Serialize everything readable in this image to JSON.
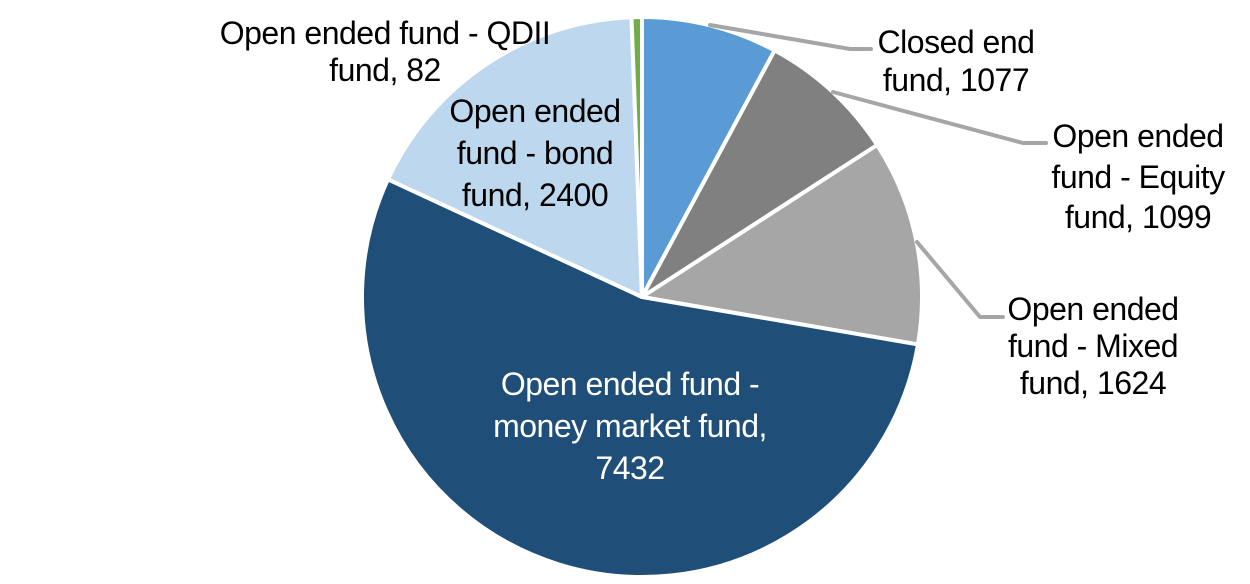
{
  "chart_data": {
    "type": "pie",
    "title": "",
    "total": 13714,
    "start_angle_deg": 0,
    "direction": "clockwise",
    "background_color": "#FFFFFF",
    "slice_border_color": "#FFFFFF",
    "leader_line_color": "#A6A6A6",
    "legend_position": "none",
    "slices": [
      {
        "id": "closed",
        "label": "Closed end fund",
        "value": 1077,
        "color": "#5B9BD5",
        "label_lines": [
          "Closed end",
          "fund, 1077"
        ],
        "label_color": "#000000",
        "has_leader_line": true
      },
      {
        "id": "equity",
        "label": "Open ended fund - Equity fund",
        "value": 1099,
        "color": "#808080",
        "label_lines": [
          "Open ended",
          "fund - Equity",
          "fund, 1099"
        ],
        "label_color": "#000000",
        "has_leader_line": true
      },
      {
        "id": "mixed",
        "label": "Open ended fund - Mixed fund",
        "value": 1624,
        "color": "#A6A6A6",
        "label_lines": [
          "Open ended",
          "fund - Mixed",
          "fund, 1624"
        ],
        "label_color": "#000000",
        "has_leader_line": true
      },
      {
        "id": "money",
        "label": "Open ended fund - money market fund",
        "value": 7432,
        "color": "#1F4E79",
        "label_lines": [
          "Open ended fund -",
          "money market fund,",
          "7432"
        ],
        "label_color": "#FFFFFF",
        "has_leader_line": false
      },
      {
        "id": "bond",
        "label": "Open ended fund - bond fund",
        "value": 2400,
        "color": "#BDD7EE",
        "label_lines": [
          "Open ended",
          "fund - bond",
          "fund, 2400"
        ],
        "label_color": "#000000",
        "has_leader_line": false
      },
      {
        "id": "qdii",
        "label": "Open ended fund - QDII fund",
        "value": 82,
        "color": "#70AD47",
        "label_lines": [
          "Open ended fund - QDII",
          "fund, 82"
        ],
        "label_color": "#000000",
        "has_leader_line": false
      }
    ]
  }
}
